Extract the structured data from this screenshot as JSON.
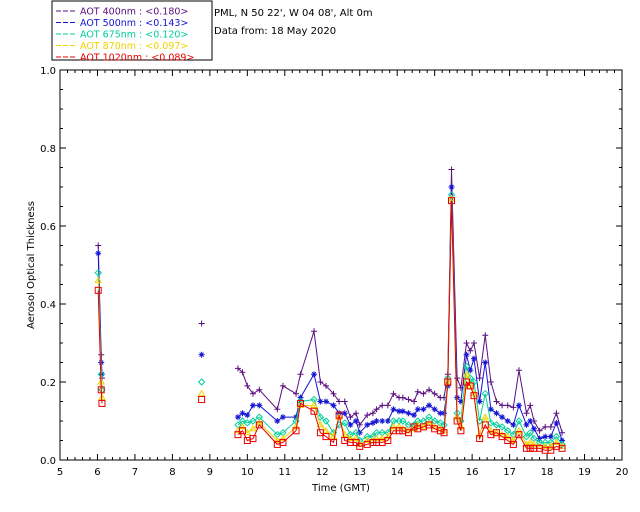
{
  "chart_data": {
    "type": "scatter",
    "info": {
      "location": "PML, N 50 22', W 04 08', Alt 0m",
      "date": "Data from: 18 May 2020"
    },
    "xlabel": "Time (GMT)",
    "ylabel": "Aerosol Optical Thickness",
    "xlim": [
      5,
      20
    ],
    "ylim": [
      0.0,
      1.0
    ],
    "x_ticks": [
      "5",
      "6",
      "7",
      "8",
      "9",
      "10",
      "11",
      "12",
      "13",
      "14",
      "15",
      "16",
      "17",
      "18",
      "19",
      "20"
    ],
    "y_ticks": [
      "0.0",
      "0.2",
      "0.4",
      "0.6",
      "0.8",
      "1.0"
    ],
    "legend_position": "top-left, outside plot",
    "series": [
      {
        "name": "AOT  400nm : <0.180>",
        "color": "#5a0f82",
        "marker": "plus",
        "points": [
          [
            6.02,
            0.55
          ],
          [
            6.1,
            0.27
          ],
          [
            6.12,
            0.21
          ],
          [
            8.78,
            0.35
          ],
          [
            9.75,
            0.235
          ],
          [
            9.87,
            0.225
          ],
          [
            10.0,
            0.19
          ],
          [
            10.15,
            0.17
          ],
          [
            10.32,
            0.18
          ],
          [
            10.8,
            0.13
          ],
          [
            10.95,
            0.19
          ],
          [
            11.3,
            0.17
          ],
          [
            11.42,
            0.22
          ],
          [
            11.78,
            0.33
          ],
          [
            11.95,
            0.2
          ],
          [
            12.1,
            0.19
          ],
          [
            12.3,
            0.17
          ],
          [
            12.45,
            0.15
          ],
          [
            12.6,
            0.15
          ],
          [
            12.75,
            0.11
          ],
          [
            12.9,
            0.12
          ],
          [
            13.0,
            0.09
          ],
          [
            13.2,
            0.115
          ],
          [
            13.35,
            0.12
          ],
          [
            13.45,
            0.13
          ],
          [
            13.6,
            0.14
          ],
          [
            13.75,
            0.14
          ],
          [
            13.9,
            0.17
          ],
          [
            14.05,
            0.16
          ],
          [
            14.15,
            0.16
          ],
          [
            14.3,
            0.155
          ],
          [
            14.45,
            0.15
          ],
          [
            14.55,
            0.175
          ],
          [
            14.7,
            0.17
          ],
          [
            14.85,
            0.18
          ],
          [
            15.0,
            0.17
          ],
          [
            15.15,
            0.16
          ],
          [
            15.25,
            0.16
          ],
          [
            15.35,
            0.22
          ],
          [
            15.45,
            0.745
          ],
          [
            15.6,
            0.21
          ],
          [
            15.7,
            0.185
          ],
          [
            15.85,
            0.3
          ],
          [
            15.95,
            0.28
          ],
          [
            16.05,
            0.3
          ],
          [
            16.2,
            0.21
          ],
          [
            16.35,
            0.32
          ],
          [
            16.5,
            0.2
          ],
          [
            16.65,
            0.15
          ],
          [
            16.8,
            0.14
          ],
          [
            16.95,
            0.14
          ],
          [
            17.1,
            0.135
          ],
          [
            17.25,
            0.23
          ],
          [
            17.45,
            0.12
          ],
          [
            17.55,
            0.14
          ],
          [
            17.65,
            0.1
          ],
          [
            17.8,
            0.075
          ],
          [
            17.95,
            0.085
          ],
          [
            18.1,
            0.085
          ],
          [
            18.25,
            0.12
          ],
          [
            18.4,
            0.07
          ]
        ]
      },
      {
        "name": "AOT  500nm : <0.143>",
        "color": "#1515d6",
        "marker": "star",
        "points": [
          [
            6.02,
            0.53
          ],
          [
            6.1,
            0.25
          ],
          [
            6.12,
            0.22
          ],
          [
            8.78,
            0.27
          ],
          [
            9.75,
            0.11
          ],
          [
            9.87,
            0.12
          ],
          [
            10.0,
            0.115
          ],
          [
            10.15,
            0.14
          ],
          [
            10.32,
            0.14
          ],
          [
            10.8,
            0.1
          ],
          [
            10.95,
            0.11
          ],
          [
            11.3,
            0.11
          ],
          [
            11.42,
            0.16
          ],
          [
            11.78,
            0.22
          ],
          [
            11.95,
            0.15
          ],
          [
            12.1,
            0.15
          ],
          [
            12.3,
            0.14
          ],
          [
            12.45,
            0.12
          ],
          [
            12.6,
            0.12
          ],
          [
            12.75,
            0.09
          ],
          [
            12.9,
            0.1
          ],
          [
            13.0,
            0.07
          ],
          [
            13.2,
            0.09
          ],
          [
            13.35,
            0.095
          ],
          [
            13.45,
            0.1
          ],
          [
            13.6,
            0.1
          ],
          [
            13.75,
            0.1
          ],
          [
            13.9,
            0.13
          ],
          [
            14.05,
            0.125
          ],
          [
            14.15,
            0.125
          ],
          [
            14.3,
            0.12
          ],
          [
            14.45,
            0.115
          ],
          [
            14.55,
            0.13
          ],
          [
            14.7,
            0.13
          ],
          [
            14.85,
            0.14
          ],
          [
            15.0,
            0.13
          ],
          [
            15.15,
            0.12
          ],
          [
            15.25,
            0.12
          ],
          [
            15.35,
            0.19
          ],
          [
            15.45,
            0.7
          ],
          [
            15.6,
            0.16
          ],
          [
            15.7,
            0.15
          ],
          [
            15.85,
            0.27
          ],
          [
            15.95,
            0.23
          ],
          [
            16.05,
            0.26
          ],
          [
            16.2,
            0.15
          ],
          [
            16.35,
            0.25
          ],
          [
            16.5,
            0.13
          ],
          [
            16.65,
            0.12
          ],
          [
            16.8,
            0.11
          ],
          [
            16.95,
            0.1
          ],
          [
            17.1,
            0.09
          ],
          [
            17.25,
            0.14
          ],
          [
            17.45,
            0.09
          ],
          [
            17.55,
            0.1
          ],
          [
            17.65,
            0.08
          ],
          [
            17.8,
            0.055
          ],
          [
            17.95,
            0.06
          ],
          [
            18.1,
            0.06
          ],
          [
            18.25,
            0.095
          ],
          [
            18.4,
            0.05
          ]
        ]
      },
      {
        "name": "AOT  675nm : <0.120>",
        "color": "#00d09a",
        "marker": "diamond",
        "points": [
          [
            6.02,
            0.48
          ],
          [
            6.1,
            0.22
          ],
          [
            6.12,
            0.18
          ],
          [
            8.78,
            0.2
          ],
          [
            9.75,
            0.09
          ],
          [
            9.87,
            0.1
          ],
          [
            10.0,
            0.095
          ],
          [
            10.15,
            0.1
          ],
          [
            10.32,
            0.11
          ],
          [
            10.8,
            0.065
          ],
          [
            10.95,
            0.07
          ],
          [
            11.3,
            0.1
          ],
          [
            11.42,
            0.15
          ],
          [
            11.78,
            0.155
          ],
          [
            11.95,
            0.11
          ],
          [
            12.1,
            0.1
          ],
          [
            12.3,
            0.07
          ],
          [
            12.45,
            0.09
          ],
          [
            12.6,
            0.095
          ],
          [
            12.75,
            0.065
          ],
          [
            12.9,
            0.07
          ],
          [
            13.0,
            0.05
          ],
          [
            13.2,
            0.06
          ],
          [
            13.35,
            0.06
          ],
          [
            13.45,
            0.07
          ],
          [
            13.6,
            0.07
          ],
          [
            13.75,
            0.07
          ],
          [
            13.9,
            0.1
          ],
          [
            14.05,
            0.1
          ],
          [
            14.15,
            0.1
          ],
          [
            14.3,
            0.09
          ],
          [
            14.45,
            0.09
          ],
          [
            14.55,
            0.1
          ],
          [
            14.7,
            0.1
          ],
          [
            14.85,
            0.11
          ],
          [
            15.0,
            0.1
          ],
          [
            15.15,
            0.095
          ],
          [
            15.25,
            0.09
          ],
          [
            15.35,
            0.21
          ],
          [
            15.45,
            0.68
          ],
          [
            15.6,
            0.12
          ],
          [
            15.7,
            0.1
          ],
          [
            15.85,
            0.24
          ],
          [
            15.95,
            0.21
          ],
          [
            16.05,
            0.2
          ],
          [
            16.2,
            0.1
          ],
          [
            16.35,
            0.17
          ],
          [
            16.5,
            0.095
          ],
          [
            16.65,
            0.09
          ],
          [
            16.8,
            0.085
          ],
          [
            16.95,
            0.075
          ],
          [
            17.1,
            0.065
          ],
          [
            17.25,
            0.1
          ],
          [
            17.45,
            0.06
          ],
          [
            17.55,
            0.07
          ],
          [
            17.65,
            0.055
          ],
          [
            17.8,
            0.045
          ],
          [
            17.95,
            0.045
          ],
          [
            18.1,
            0.045
          ],
          [
            18.25,
            0.06
          ],
          [
            18.4,
            0.04
          ]
        ]
      },
      {
        "name": "AOT  870nm : <0.097>",
        "color": "#f2d300",
        "marker": "triangle",
        "points": [
          [
            6.02,
            0.46
          ],
          [
            6.1,
            0.2
          ],
          [
            6.12,
            0.16
          ],
          [
            8.78,
            0.17
          ],
          [
            9.75,
            0.075
          ],
          [
            9.87,
            0.085
          ],
          [
            10.0,
            0.07
          ],
          [
            10.15,
            0.08
          ],
          [
            10.32,
            0.095
          ],
          [
            10.8,
            0.05
          ],
          [
            10.95,
            0.055
          ],
          [
            11.3,
            0.085
          ],
          [
            11.42,
            0.14
          ],
          [
            11.78,
            0.14
          ],
          [
            11.95,
            0.09
          ],
          [
            12.1,
            0.075
          ],
          [
            12.3,
            0.06
          ],
          [
            12.45,
            0.11
          ],
          [
            12.6,
            0.065
          ],
          [
            12.75,
            0.055
          ],
          [
            12.9,
            0.055
          ],
          [
            13.0,
            0.04
          ],
          [
            13.2,
            0.05
          ],
          [
            13.35,
            0.05
          ],
          [
            13.45,
            0.055
          ],
          [
            13.6,
            0.055
          ],
          [
            13.75,
            0.06
          ],
          [
            13.9,
            0.085
          ],
          [
            14.05,
            0.085
          ],
          [
            14.15,
            0.08
          ],
          [
            14.3,
            0.075
          ],
          [
            14.45,
            0.08
          ],
          [
            14.55,
            0.09
          ],
          [
            14.7,
            0.085
          ],
          [
            14.85,
            0.095
          ],
          [
            15.0,
            0.085
          ],
          [
            15.15,
            0.08
          ],
          [
            15.25,
            0.075
          ],
          [
            15.35,
            0.2
          ],
          [
            15.45,
            0.67
          ],
          [
            15.6,
            0.11
          ],
          [
            15.7,
            0.085
          ],
          [
            15.85,
            0.22
          ],
          [
            15.95,
            0.19
          ],
          [
            16.05,
            0.17
          ],
          [
            16.2,
            0.065
          ],
          [
            16.35,
            0.11
          ],
          [
            16.5,
            0.075
          ],
          [
            16.65,
            0.07
          ],
          [
            16.8,
            0.065
          ],
          [
            16.95,
            0.06
          ],
          [
            17.1,
            0.05
          ],
          [
            17.25,
            0.075
          ],
          [
            17.45,
            0.04
          ],
          [
            17.55,
            0.045
          ],
          [
            17.65,
            0.04
          ],
          [
            17.8,
            0.035
          ],
          [
            17.95,
            0.035
          ],
          [
            18.1,
            0.035
          ],
          [
            18.25,
            0.045
          ],
          [
            18.4,
            0.035
          ]
        ]
      },
      {
        "name": "AOT 1020nm : <0.089>",
        "color": "#e80000",
        "marker": "square",
        "points": [
          [
            6.02,
            0.435
          ],
          [
            6.1,
            0.18
          ],
          [
            6.12,
            0.145
          ],
          [
            8.78,
            0.155
          ],
          [
            9.75,
            0.065
          ],
          [
            9.87,
            0.075
          ],
          [
            10.0,
            0.05
          ],
          [
            10.15,
            0.055
          ],
          [
            10.32,
            0.09
          ],
          [
            10.8,
            0.04
          ],
          [
            10.95,
            0.045
          ],
          [
            11.3,
            0.075
          ],
          [
            11.42,
            0.145
          ],
          [
            11.78,
            0.125
          ],
          [
            11.95,
            0.07
          ],
          [
            12.1,
            0.06
          ],
          [
            12.3,
            0.045
          ],
          [
            12.45,
            0.115
          ],
          [
            12.6,
            0.05
          ],
          [
            12.75,
            0.045
          ],
          [
            12.9,
            0.045
          ],
          [
            13.0,
            0.035
          ],
          [
            13.2,
            0.04
          ],
          [
            13.35,
            0.045
          ],
          [
            13.45,
            0.045
          ],
          [
            13.6,
            0.045
          ],
          [
            13.75,
            0.05
          ],
          [
            13.9,
            0.075
          ],
          [
            14.05,
            0.075
          ],
          [
            14.15,
            0.075
          ],
          [
            14.3,
            0.07
          ],
          [
            14.45,
            0.085
          ],
          [
            14.55,
            0.08
          ],
          [
            14.7,
            0.085
          ],
          [
            14.85,
            0.09
          ],
          [
            15.0,
            0.08
          ],
          [
            15.15,
            0.075
          ],
          [
            15.25,
            0.07
          ],
          [
            15.35,
            0.2
          ],
          [
            15.45,
            0.665
          ],
          [
            15.6,
            0.1
          ],
          [
            15.7,
            0.075
          ],
          [
            15.85,
            0.2
          ],
          [
            15.95,
            0.19
          ],
          [
            16.05,
            0.165
          ],
          [
            16.2,
            0.055
          ],
          [
            16.35,
            0.09
          ],
          [
            16.5,
            0.065
          ],
          [
            16.65,
            0.07
          ],
          [
            16.8,
            0.06
          ],
          [
            16.95,
            0.05
          ],
          [
            17.1,
            0.04
          ],
          [
            17.25,
            0.065
          ],
          [
            17.45,
            0.03
          ],
          [
            17.55,
            0.03
          ],
          [
            17.65,
            0.03
          ],
          [
            17.8,
            0.03
          ],
          [
            17.95,
            0.025
          ],
          [
            18.1,
            0.025
          ],
          [
            18.25,
            0.035
          ],
          [
            18.4,
            0.03
          ]
        ]
      }
    ]
  }
}
